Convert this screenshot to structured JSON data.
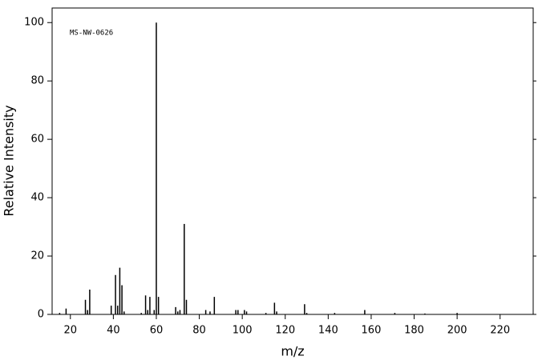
{
  "chart_data": {
    "type": "stem",
    "annotation": "MS-NW-0626",
    "xlabel": "m/z",
    "ylabel": "Relative Intensity",
    "x": [
      15,
      18,
      27,
      28,
      29,
      39,
      41,
      42,
      43,
      44,
      45,
      53,
      55,
      56,
      57,
      59,
      60,
      61,
      69,
      70,
      71,
      73,
      74,
      83,
      85,
      87,
      97,
      98,
      101,
      102,
      111,
      115,
      116,
      129,
      130,
      143,
      157,
      171,
      185,
      200
    ],
    "values": [
      0.5,
      2,
      5,
      1.5,
      8.5,
      3,
      13.5,
      3,
      16,
      10,
      1,
      0.5,
      6.5,
      1.5,
      6,
      1.5,
      100,
      6,
      2.5,
      1,
      1.5,
      31,
      5,
      1.5,
      1,
      6,
      1.5,
      1.5,
      1.5,
      1,
      0.5,
      4,
      1,
      3.5,
      0.5,
      0.5,
      1.5,
      0.5,
      0.3,
      0.5
    ],
    "color": "#000000",
    "xlim": [
      11.5,
      235.4
    ],
    "ylim": [
      0,
      105
    ],
    "xticks": [
      20,
      40,
      60,
      80,
      100,
      120,
      140,
      160,
      180,
      200,
      220
    ],
    "yticks": [
      0,
      20,
      40,
      60,
      80,
      100
    ]
  }
}
